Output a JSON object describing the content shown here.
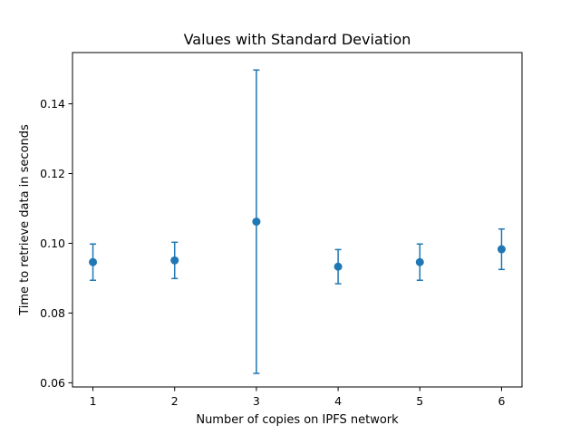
{
  "chart_data": {
    "type": "scatter",
    "title": "Values with Standard Deviation",
    "xlabel": "Number of copies on IPFS network",
    "ylabel": "Time to retrieve data in seconds",
    "x": [
      1,
      2,
      3,
      4,
      5,
      6
    ],
    "y": [
      0.0946,
      0.0951,
      0.1062,
      0.0933,
      0.0946,
      0.0983
    ],
    "yerr": [
      0.0052,
      0.0052,
      0.0435,
      0.0049,
      0.0052,
      0.0058
    ],
    "xlim": [
      0.75,
      6.25
    ],
    "ylim": [
      0.0588,
      0.1547
    ],
    "xticks": [
      1,
      2,
      3,
      4,
      5,
      6
    ],
    "xtick_labels": [
      "1",
      "2",
      "3",
      "4",
      "5",
      "6"
    ],
    "yticks": [
      0.06,
      0.08,
      0.1,
      0.12,
      0.14
    ],
    "ytick_labels": [
      "0.06",
      "0.08",
      "0.10",
      "0.12",
      "0.14"
    ],
    "grid": false,
    "legend": "none",
    "colors": {
      "series": "#1f77b4",
      "axes": "#000000",
      "background": "#ffffff"
    }
  }
}
